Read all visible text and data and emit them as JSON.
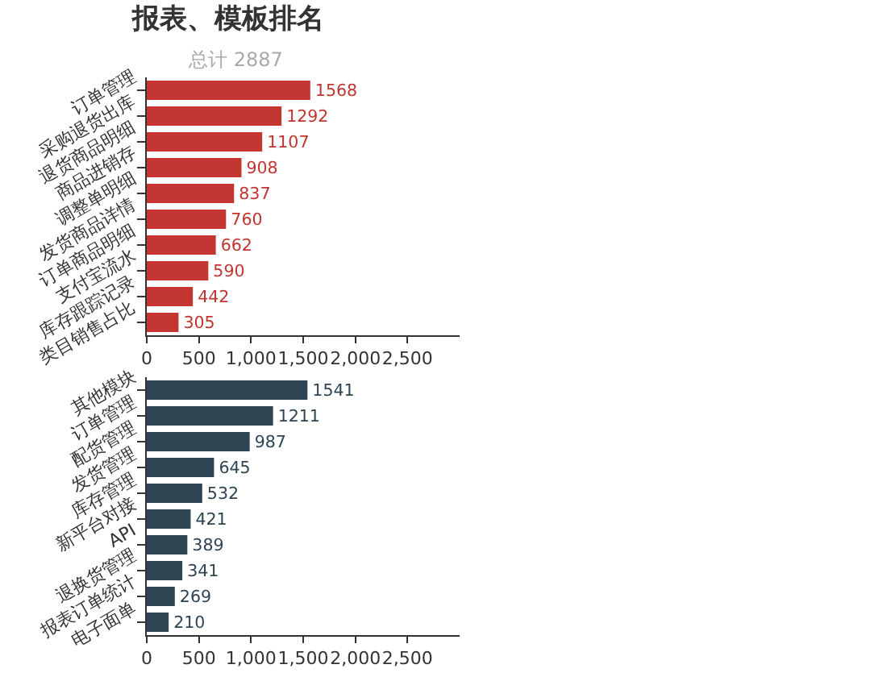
{
  "chart_data": [
    {
      "type": "bar",
      "title": "报表、模板排名",
      "subtitle": "总计 2887",
      "orientation": "horizontal",
      "data_labels": true,
      "categories": [
        "订单管理",
        "采购退货出库",
        "退货商品明细",
        "商品进销存",
        "调整单明细",
        "发货商品详情",
        "订单商品明细",
        "支付宝流水",
        "库存跟踪记录",
        "类目销售占比"
      ],
      "series": [
        {
          "color": "#c23531",
          "values": [
            1568,
            1292,
            1107,
            908,
            837,
            760,
            662,
            590,
            442,
            305
          ]
        }
      ],
      "xlim": [
        0,
        3000
      ],
      "xticks": [
        {
          "value": 0,
          "label": "0"
        },
        {
          "value": 500,
          "label": "500"
        },
        {
          "value": 1000,
          "label": "1,000"
        },
        {
          "value": 1500,
          "label": "1,500"
        },
        {
          "value": 2000,
          "label": "2,000"
        },
        {
          "value": 2500,
          "label": "2,500"
        }
      ]
    },
    {
      "type": "bar",
      "orientation": "horizontal",
      "data_labels": true,
      "categories": [
        "其他模块",
        "订单管理",
        "配货管理",
        "发货管理",
        "库存管理",
        "新平台对接",
        "API",
        "退换货管理",
        "报表订单统计",
        "电子面单"
      ],
      "series": [
        {
          "color": "#2f4554",
          "values": [
            1541,
            1211,
            987,
            645,
            532,
            421,
            389,
            341,
            269,
            210
          ]
        }
      ],
      "xlim": [
        0,
        3000
      ],
      "xticks": [
        {
          "value": 0,
          "label": "0"
        },
        {
          "value": 500,
          "label": "500"
        },
        {
          "value": 1000,
          "label": "1,000"
        },
        {
          "value": 1500,
          "label": "1,500"
        },
        {
          "value": 2000,
          "label": "2,000"
        },
        {
          "value": 2500,
          "label": "2,500"
        }
      ]
    }
  ]
}
